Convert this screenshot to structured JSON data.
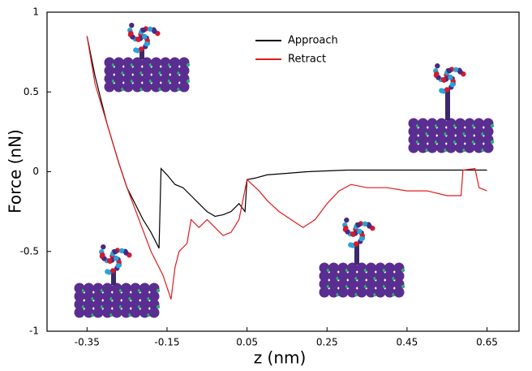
{
  "chart_data": {
    "type": "line",
    "x_label": "z   (nm)",
    "y_label": "Force (nN)",
    "xlim": [
      -0.45,
      0.73
    ],
    "ylim": [
      -1,
      1
    ],
    "xticks": [
      -0.35,
      -0.15,
      0.05,
      0.25,
      0.45,
      0.65
    ],
    "yticks": [
      -1,
      -0.5,
      0,
      0.5,
      1
    ],
    "series": [
      {
        "name": "Approach",
        "color": "#000000",
        "x": [
          -0.35,
          -0.33,
          -0.3,
          -0.27,
          -0.25,
          -0.23,
          -0.21,
          -0.19,
          -0.17,
          -0.165,
          -0.15,
          -0.13,
          -0.11,
          -0.09,
          -0.07,
          -0.05,
          -0.03,
          -0.01,
          0.01,
          0.03,
          0.045,
          0.05,
          0.07,
          0.1,
          0.15,
          0.2,
          0.3,
          0.4,
          0.5,
          0.6,
          0.65
        ],
        "values": [
          0.85,
          0.6,
          0.3,
          0.05,
          -0.1,
          -0.2,
          -0.3,
          -0.38,
          -0.48,
          0.02,
          -0.02,
          -0.08,
          -0.1,
          -0.15,
          -0.2,
          -0.25,
          -0.28,
          -0.27,
          -0.25,
          -0.2,
          -0.25,
          -0.05,
          -0.04,
          -0.02,
          -0.01,
          0,
          0.01,
          0.01,
          0.01,
          0.01,
          0.01
        ]
      },
      {
        "name": "Retract",
        "color": "#e41a1c",
        "x": [
          -0.35,
          -0.33,
          -0.3,
          -0.27,
          -0.25,
          -0.22,
          -0.19,
          -0.16,
          -0.14,
          -0.13,
          -0.12,
          -0.1,
          -0.09,
          -0.07,
          -0.05,
          -0.03,
          -0.01,
          0.01,
          0.03,
          0.05,
          0.08,
          0.1,
          0.13,
          0.16,
          0.19,
          0.22,
          0.25,
          0.28,
          0.31,
          0.35,
          0.4,
          0.45,
          0.5,
          0.55,
          0.585,
          0.59,
          0.62,
          0.63,
          0.65
        ],
        "values": [
          0.85,
          0.55,
          0.3,
          0.05,
          -0.1,
          -0.3,
          -0.5,
          -0.65,
          -0.8,
          -0.6,
          -0.5,
          -0.45,
          -0.3,
          -0.35,
          -0.3,
          -0.35,
          -0.4,
          -0.38,
          -0.3,
          -0.05,
          -0.12,
          -0.18,
          -0.25,
          -0.3,
          -0.35,
          -0.3,
          -0.2,
          -0.12,
          -0.08,
          -0.1,
          -0.1,
          -0.12,
          -0.12,
          -0.15,
          -0.15,
          0.01,
          0.02,
          -0.1,
          -0.12
        ]
      }
    ]
  }
}
